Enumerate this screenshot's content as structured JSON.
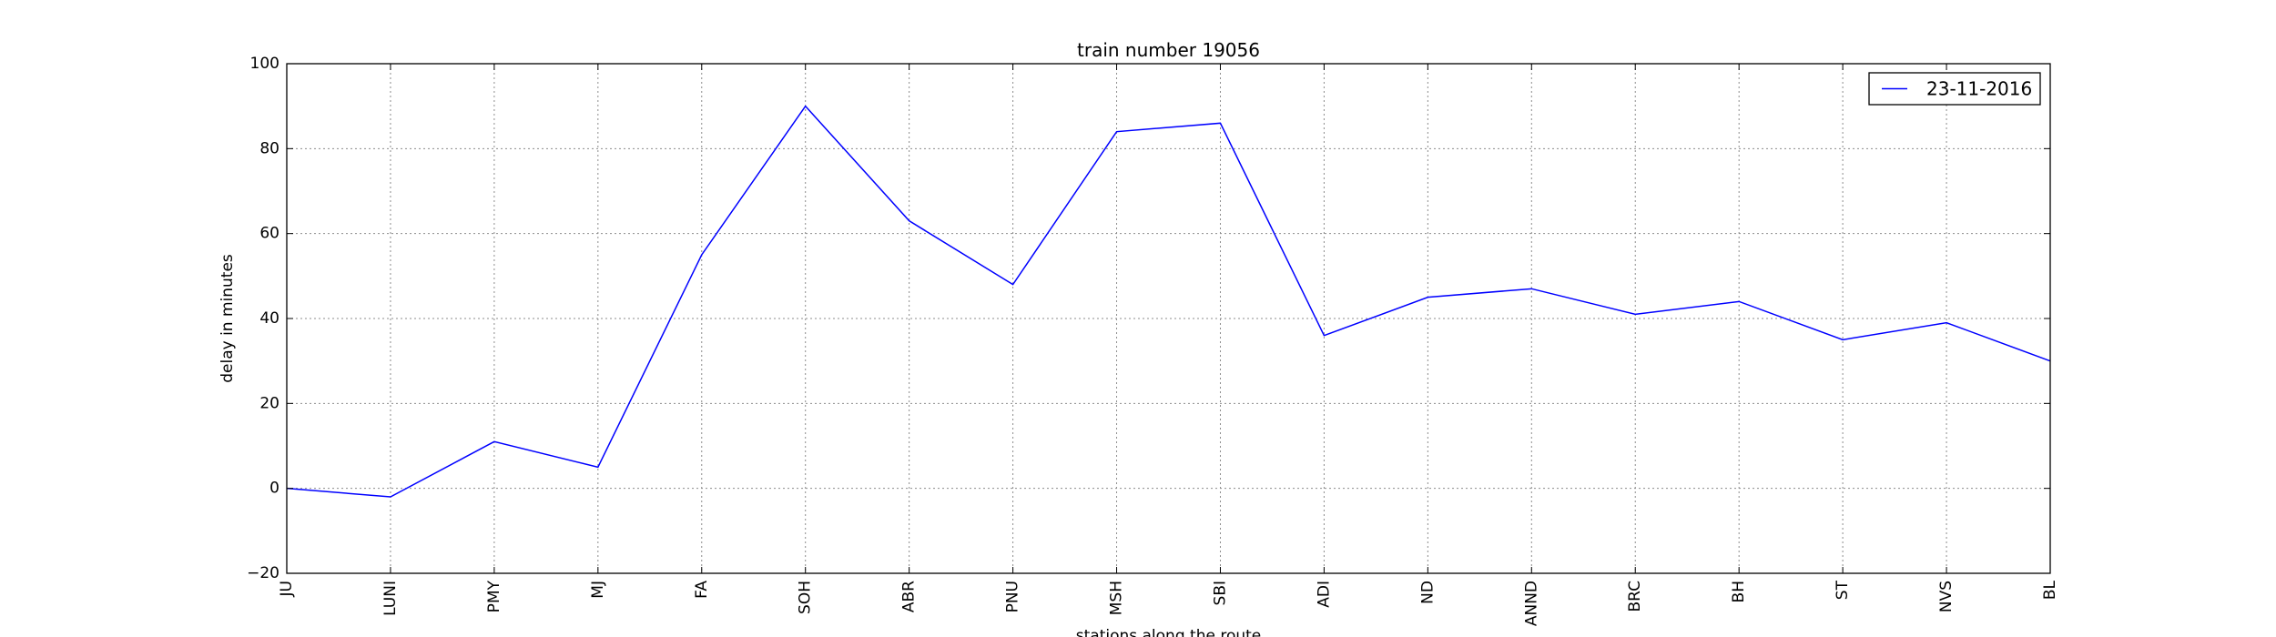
{
  "chart_data": {
    "type": "line",
    "title": "train number 19056",
    "xlabel": "stations along the route",
    "ylabel": "delay in minutes",
    "categories": [
      "JU",
      "LUNI",
      "PMY",
      "MJ",
      "FA",
      "SOH",
      "ABR",
      "PNU",
      "MSH",
      "SBI",
      "ADI",
      "ND",
      "ANND",
      "BRC",
      "BH",
      "ST",
      "NVS",
      "BL"
    ],
    "series": [
      {
        "name": "23-11-2016",
        "values": [
          0,
          -2,
          11,
          5,
          55,
          90,
          63,
          48,
          84,
          86,
          36,
          45,
          47,
          41,
          44,
          35,
          39,
          30
        ],
        "color": "#0000ff"
      }
    ],
    "ylim": [
      -20,
      100
    ],
    "yticks": [
      "−20",
      "0",
      "20",
      "40",
      "60",
      "80",
      "100"
    ],
    "grid": true,
    "legend_position": "top-right"
  }
}
